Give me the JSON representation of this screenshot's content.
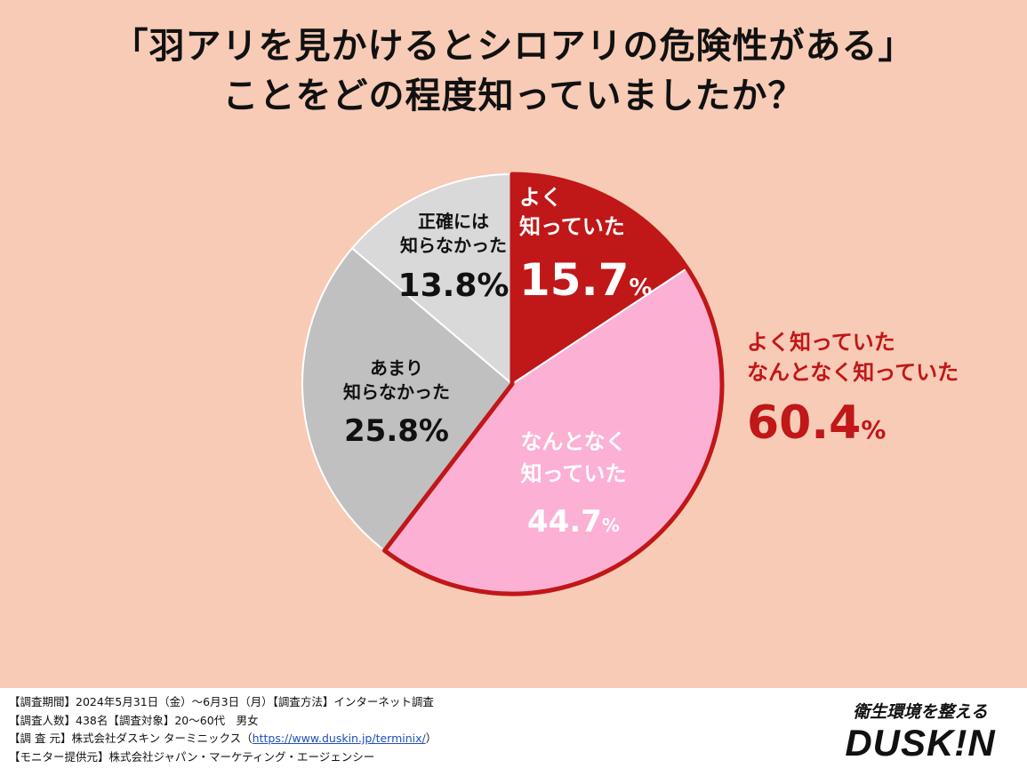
{
  "title": {
    "line1": "「羽アリを見かけるとシロアリの危険性がある」",
    "line2": "ことをどの程度知っていましたか？"
  },
  "chart_data": {
    "type": "pie",
    "title": "「羽アリを見かけるとシロアリの危険性がある」ことをどの程度知っていましたか？",
    "unit": "%",
    "slices": [
      {
        "name": "よく知っていた",
        "label_lines": [
          "よく",
          "知っていた"
        ],
        "value": 15.7,
        "display": "15.7",
        "color": "#c01718",
        "text_color": "#ffffff"
      },
      {
        "name": "なんとなく知っていた",
        "label_lines": [
          "なんとなく",
          "知っていた"
        ],
        "value": 44.7,
        "display": "44.7",
        "color": "#fbb0d4",
        "text_color": "#ffffff"
      },
      {
        "name": "あまり知らなかった",
        "label_lines": [
          "あまり",
          "知らなかった"
        ],
        "value": 25.8,
        "display": "25.8",
        "color": "#c0c0c0",
        "text_color": "#111111"
      },
      {
        "name": "正確には知らなかった",
        "label_lines": [
          "正確には",
          "知らなかった"
        ],
        "value": 13.8,
        "display": "13.8",
        "color": "#d9d9d9",
        "text_color": "#111111"
      }
    ],
    "highlight": {
      "label_lines": [
        "よく知っていた",
        "なんとなく知っていた"
      ],
      "value": 60.4,
      "display": "60.4",
      "color": "#c01718"
    }
  },
  "footer": {
    "notes": [
      "【調査期間】2024年5月31日（金）～6月3日（月）【調査方法】インターネット調査",
      "【調査人数】438名【調査対象】20～60代　男女",
      "【調 査 元】株式会社ダスキン ターミニックス（",
      "【モニター提供元】株式会社ジャパン・マーケティング・エージェンシー"
    ],
    "url": "https://www.duskin.jp/terminix/",
    "url_close": "）",
    "slogan": "衛生環境を整える",
    "logo": "DUSK!N"
  }
}
